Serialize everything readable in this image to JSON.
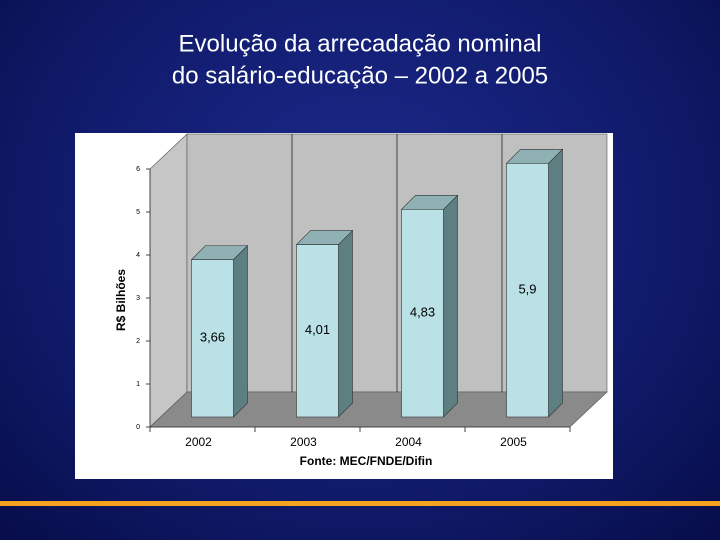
{
  "chart_data": {
    "type": "bar3d",
    "title": [
      "Evolução da arrecadação nominal",
      "do salário-educação – 2002 a 2005"
    ],
    "y_label": "R$ Bilhões",
    "source": "Fonte: MEC/FNDE/Difin",
    "categories": [
      "2002",
      "2003",
      "2004",
      "2005"
    ],
    "values": [
      3.66,
      4.01,
      4.83,
      5.9
    ],
    "value_labels": [
      "3,66",
      "4,01",
      "4,83",
      "5,9"
    ],
    "color": "#b9e1e6",
    "ylim": [
      0,
      6
    ],
    "yticks": [
      0,
      1,
      2,
      3,
      4,
      5,
      6
    ],
    "grid": true
  }
}
